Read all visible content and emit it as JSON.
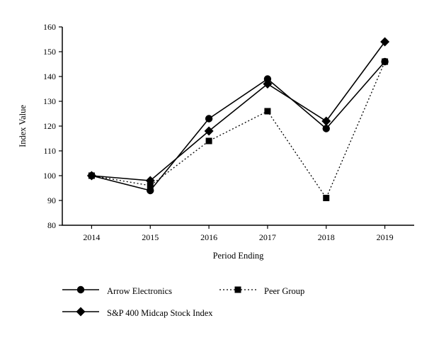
{
  "chart_data": {
    "type": "line",
    "title": "",
    "xlabel": "Period Ending",
    "ylabel": "Index Value",
    "ylim": [
      80,
      160
    ],
    "ytick_step": 10,
    "grid": false,
    "legend_position": "bottom",
    "line_color": "#000000",
    "background": "#ffffff",
    "categories": [
      "2014",
      "2015",
      "2016",
      "2017",
      "2018",
      "2019"
    ],
    "series": [
      {
        "name": "Arrow Electronics",
        "marker": "circle",
        "line": "solid",
        "values": [
          100,
          94,
          123,
          139,
          119,
          146
        ]
      },
      {
        "name": "Peer Group",
        "marker": "square",
        "line": "dotted",
        "values": [
          100,
          96,
          114,
          126,
          91,
          146
        ]
      },
      {
        "name": "S&P 400 Midcap Stock Index",
        "marker": "diamond",
        "line": "solid",
        "values": [
          100,
          98,
          118,
          137,
          122,
          154
        ]
      }
    ]
  }
}
